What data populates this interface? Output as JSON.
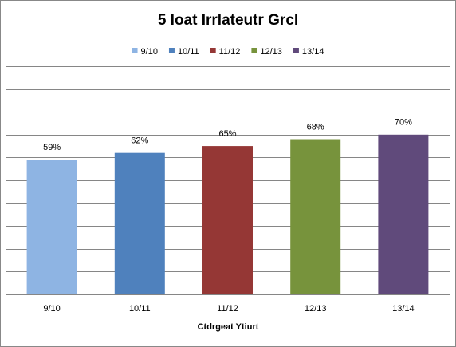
{
  "chart_data": {
    "type": "bar",
    "title": "5 Ioat Irrlateutr Grcl",
    "x_label": "Ctdrgeat Ytiurt",
    "categories": [
      "9/10",
      "10/11",
      "11/12",
      "12/13",
      "13/14"
    ],
    "values": [
      59,
      62,
      65,
      68,
      70
    ],
    "value_labels": [
      "59%",
      "62%",
      "65%",
      "68%",
      "70%"
    ],
    "colors": [
      "#8eb4e3",
      "#4f81bd",
      "#953735",
      "#77933c",
      "#604a7b"
    ],
    "ylim": [
      0,
      100
    ],
    "yticks": [
      0,
      10,
      20,
      30,
      40,
      50,
      60,
      70,
      80,
      90,
      100
    ],
    "grid": true,
    "legend": "top"
  }
}
